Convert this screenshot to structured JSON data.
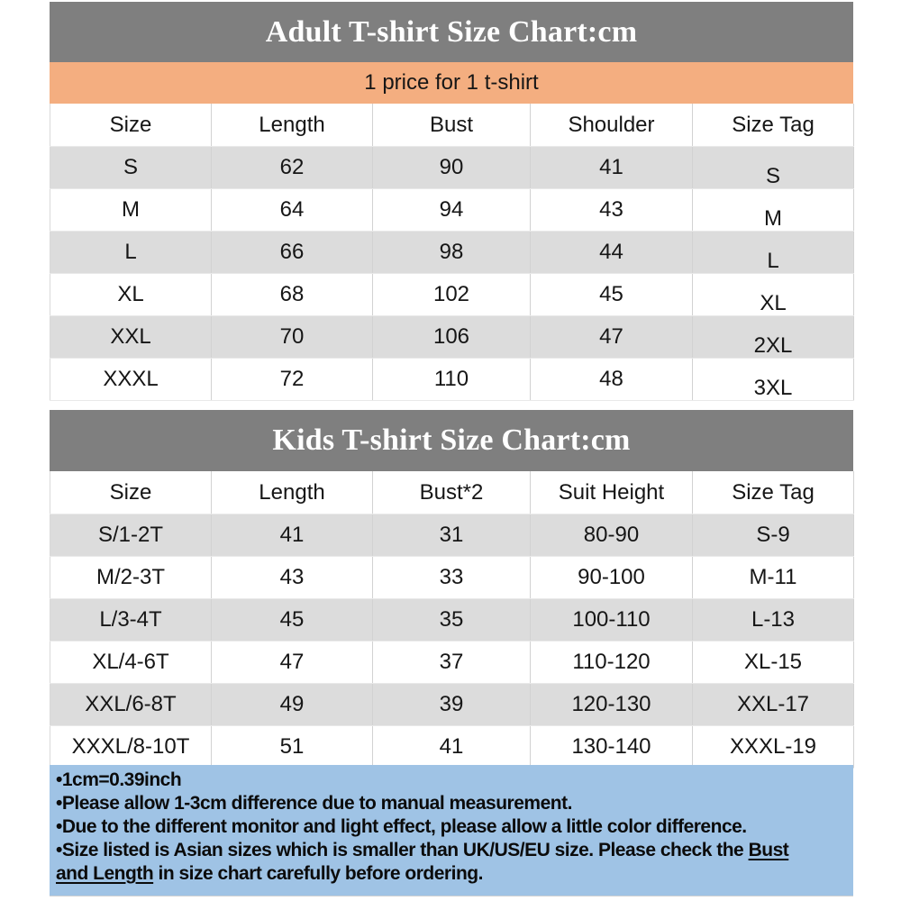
{
  "colors": {
    "title_bar_bg": "#7f7f7f",
    "title_text": "#ffffff",
    "price_bar_bg": "#f4ae80",
    "row_alt_bg": "#dcdcdc",
    "notes_bg": "#9fc3e5",
    "grid_line": "#d2d2d2",
    "body_text": "#161616"
  },
  "adult_chart": {
    "title": "Adult T-shirt Size Chart:cm",
    "price_note": "1 price for 1 t-shirt",
    "table": {
      "headers": [
        "Size",
        "Length",
        "Bust",
        "Shoulder",
        "Size Tag"
      ],
      "rows": [
        [
          "S",
          "62",
          "90",
          "41",
          "S"
        ],
        [
          "M",
          "64",
          "94",
          "43",
          "M"
        ],
        [
          "L",
          "66",
          "98",
          "44",
          "L"
        ],
        [
          "XL",
          "68",
          "102",
          "45",
          "XL"
        ],
        [
          "XXL",
          "70",
          "106",
          "47",
          "2XL"
        ],
        [
          "XXXL",
          "72",
          "110",
          "48",
          "3XL"
        ]
      ]
    }
  },
  "kids_chart": {
    "title": "Kids T-shirt Size Chart:cm",
    "table": {
      "headers": [
        "Size",
        "Length",
        "Bust*2",
        "Suit Height",
        "Size Tag"
      ],
      "rows": [
        [
          "S/1-2T",
          "41",
          "31",
          "80-90",
          "S-9"
        ],
        [
          "M/2-3T",
          "43",
          "33",
          "90-100",
          "M-11"
        ],
        [
          "L/3-4T",
          "45",
          "35",
          "100-110",
          "L-13"
        ],
        [
          "XL/4-6T",
          "47",
          "37",
          "110-120",
          "XL-15"
        ],
        [
          "XXL/6-8T",
          "49",
          "39",
          "120-130",
          "XXL-17"
        ],
        [
          "XXXL/8-10T",
          "51",
          "41",
          "130-140",
          "XXXL-19"
        ]
      ]
    }
  },
  "notes": {
    "lines": [
      [
        {
          "text": "•1cm=0.39inch"
        }
      ],
      [
        {
          "text": "•Please allow 1-3cm difference due to manual measurement."
        }
      ],
      [
        {
          "text": "•Due to the different monitor and light effect, please allow a little color difference."
        }
      ],
      [
        {
          "text": "•Size listed is Asian sizes which is smaller than UK/US/EU size. Please check the "
        },
        {
          "text": "Bust",
          "underline": true
        }
      ],
      [
        {
          "text": "and Length",
          "underline": true
        },
        {
          "text": " in size chart carefully before ordering."
        }
      ]
    ]
  }
}
